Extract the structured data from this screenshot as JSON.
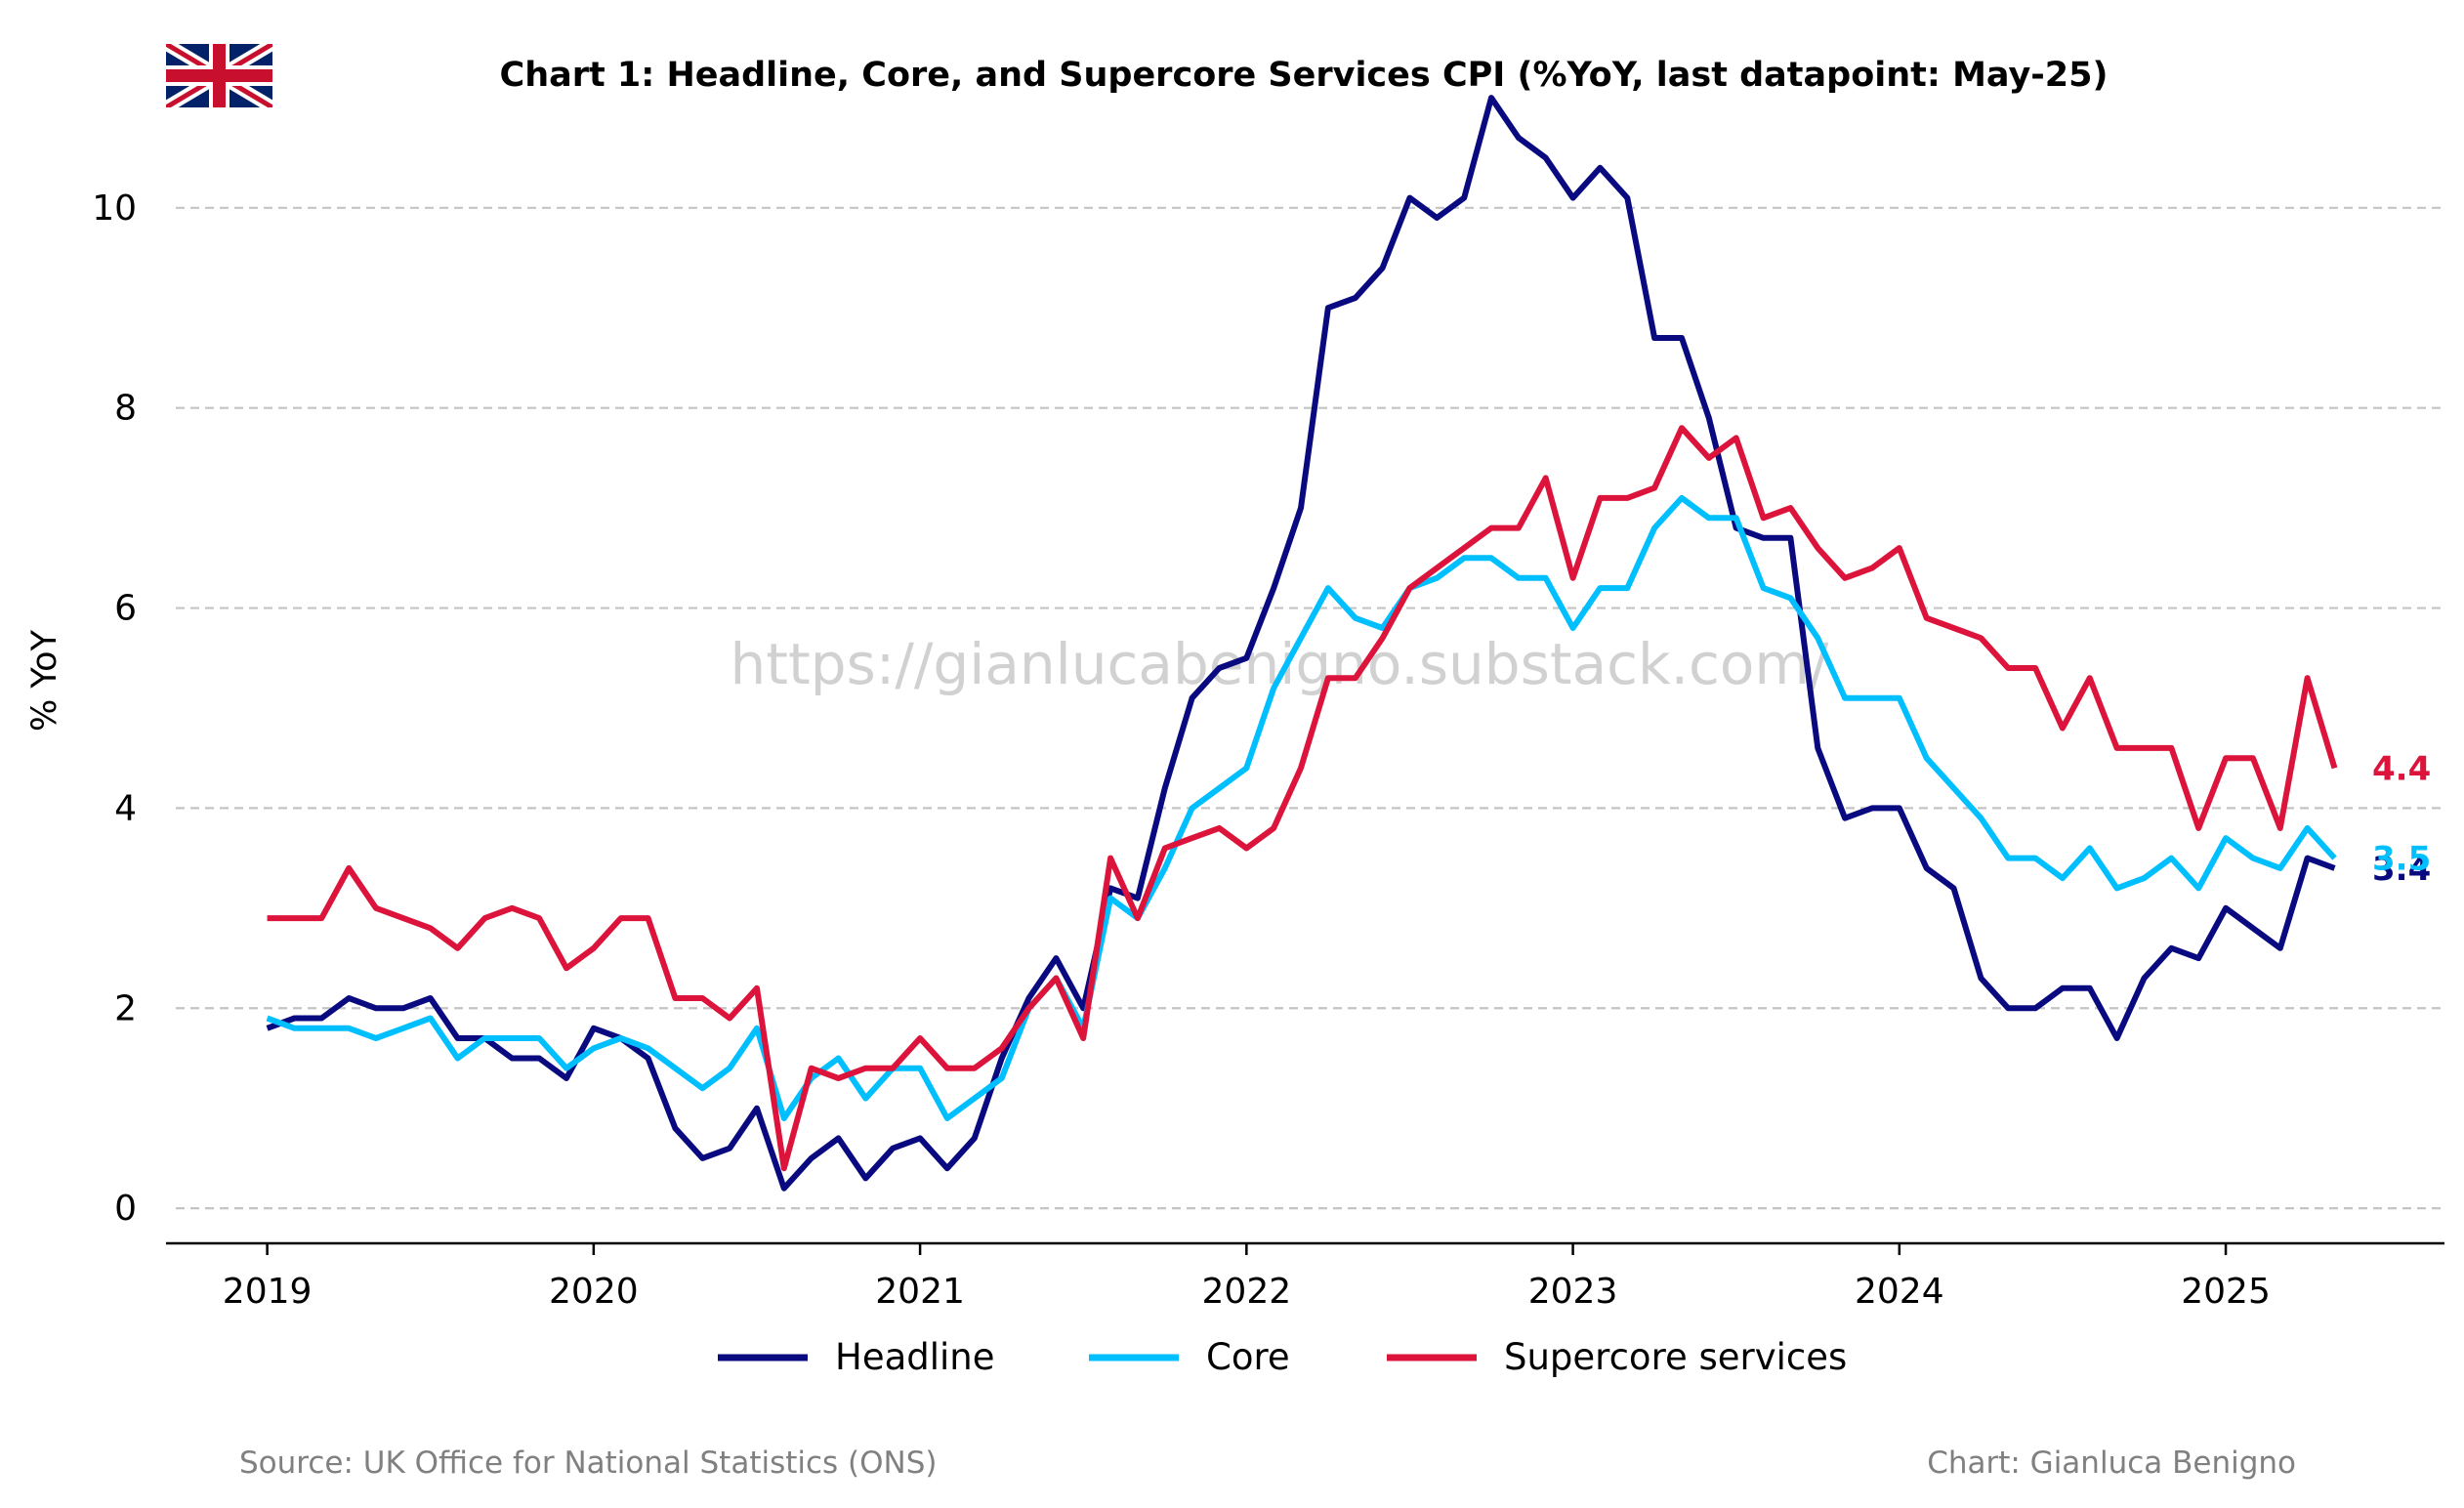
{
  "chart_data": {
    "type": "line",
    "title": "Chart 1: Headline, Core, and Supercore Services CPI (%YoY, last datapoint: May-25)",
    "ylabel": "% YoY",
    "xlabel": "",
    "watermark": "https://gianlucabenigno.substack.com/",
    "source": "Source: UK Office for National Statistics (ONS)",
    "credit": "Chart: Gianluca Benigno",
    "flag_icon": "uk-flag-icon",
    "ylim": [
      -0.35,
      11.15
    ],
    "yticks": [
      0,
      2,
      4,
      6,
      8,
      10
    ],
    "xlim": [
      2018.69,
      2025.67
    ],
    "xticks": [
      2019,
      2020,
      2021,
      2022,
      2023,
      2024,
      2025
    ],
    "x_start": "2019-01",
    "x_end": "2025-05",
    "grid": "y dashed",
    "legend_position": "bottom",
    "series": [
      {
        "name": "Headline",
        "color": "#0a0a80",
        "end_label": "3.4",
        "values": [
          1.8,
          1.9,
          1.9,
          2.1,
          2.0,
          2.0,
          2.1,
          1.7,
          1.7,
          1.5,
          1.5,
          1.3,
          1.8,
          1.7,
          1.5,
          0.8,
          0.5,
          0.6,
          1.0,
          0.2,
          0.5,
          0.7,
          0.3,
          0.6,
          0.7,
          0.4,
          0.7,
          1.5,
          2.1,
          2.5,
          2.0,
          3.2,
          3.1,
          4.2,
          5.1,
          5.4,
          5.5,
          6.2,
          7.0,
          9.0,
          9.1,
          9.4,
          10.1,
          9.9,
          10.1,
          11.1,
          10.7,
          10.5,
          10.1,
          10.4,
          10.1,
          8.7,
          8.7,
          7.9,
          6.8,
          6.7,
          6.7,
          4.6,
          3.9,
          4.0,
          4.0,
          3.4,
          3.2,
          2.3,
          2.0,
          2.0,
          2.2,
          2.2,
          1.7,
          2.3,
          2.6,
          2.5,
          3.0,
          2.8,
          2.6,
          3.5,
          3.4
        ]
      },
      {
        "name": "Core",
        "color": "#00bfff",
        "end_label": "3.5",
        "values": [
          1.9,
          1.8,
          1.8,
          1.8,
          1.7,
          1.8,
          1.9,
          1.5,
          1.7,
          1.7,
          1.7,
          1.4,
          1.6,
          1.7,
          1.6,
          1.4,
          1.2,
          1.4,
          1.8,
          0.9,
          1.3,
          1.5,
          1.1,
          1.4,
          1.4,
          0.9,
          1.1,
          1.3,
          2.0,
          2.3,
          1.8,
          3.1,
          2.9,
          3.4,
          4.0,
          4.2,
          4.4,
          5.2,
          5.7,
          6.2,
          5.9,
          5.8,
          6.2,
          6.3,
          6.5,
          6.5,
          6.3,
          6.3,
          5.8,
          6.2,
          6.2,
          6.8,
          7.1,
          6.9,
          6.9,
          6.2,
          6.1,
          5.7,
          5.1,
          5.1,
          5.1,
          4.5,
          4.2,
          3.9,
          3.5,
          3.5,
          3.3,
          3.6,
          3.2,
          3.3,
          3.5,
          3.2,
          3.7,
          3.5,
          3.4,
          3.8,
          3.5
        ]
      },
      {
        "name": "Supercore services",
        "color": "#dc143c",
        "end_label": "4.4",
        "values": [
          2.9,
          2.9,
          2.9,
          3.4,
          3.0,
          2.9,
          2.8,
          2.6,
          2.9,
          3.0,
          2.9,
          2.4,
          2.6,
          2.9,
          2.9,
          2.1,
          2.1,
          1.9,
          2.2,
          0.4,
          1.4,
          1.3,
          1.4,
          1.4,
          1.7,
          1.4,
          1.4,
          1.6,
          2.0,
          2.3,
          1.7,
          3.5,
          2.9,
          3.6,
          3.7,
          3.8,
          3.6,
          3.8,
          4.4,
          5.3,
          5.3,
          5.7,
          6.2,
          6.4,
          6.6,
          6.8,
          6.8,
          7.3,
          6.3,
          7.1,
          7.1,
          7.2,
          7.8,
          7.5,
          7.7,
          6.9,
          7.0,
          6.6,
          6.3,
          6.4,
          6.6,
          5.9,
          5.8,
          5.7,
          5.4,
          5.4,
          4.8,
          5.3,
          4.6,
          4.6,
          4.6,
          3.8,
          4.5,
          4.5,
          3.8,
          5.3,
          4.4
        ]
      }
    ]
  }
}
